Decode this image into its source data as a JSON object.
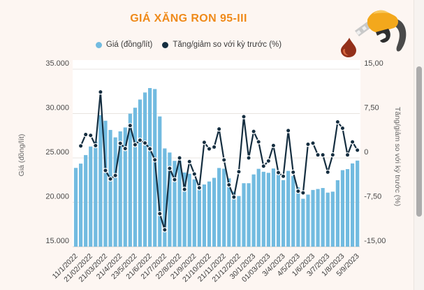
{
  "title": "GIÁ XĂNG RON 95-III",
  "legend": {
    "price_label": "Giá (đồng/lít)",
    "pct_label": "Tăng/giảm so với kỳ trước (%)"
  },
  "colors": {
    "background": "#fdf6f2",
    "plot_background": "#ffffff",
    "bar": "#72bbe0",
    "line": "#152e40",
    "title": "#ef8a1a",
    "grid": "#e8e4e0",
    "tick_text": "#4a4a4a",
    "axis_title_text": "#666666",
    "scroll_thumb": "#acacac"
  },
  "icons": {
    "fuel_pump": "fuel-pump-icon"
  },
  "scrollbar": {
    "present": true
  },
  "chart_data": {
    "type": "bar+line",
    "title": "GIÁ XĂNG RON 95-III",
    "left_axis": {
      "title": "Giá (đồng/lít)",
      "min": 15000,
      "max": 35000,
      "tick_labels": [
        "35.000",
        "30.000",
        "25.000",
        "20.000",
        "15.000"
      ]
    },
    "right_axis": {
      "title": "Tăng/giảm so với kỳ trước (%)",
      "min": -15,
      "max": 15,
      "tick_labels": [
        "15,00",
        "7,50",
        "0",
        "-7,50",
        "-15,00"
      ]
    },
    "x_tick_labels": [
      "11/1/2022",
      "21/02/2022",
      "21/03/2022",
      "21/4/2022",
      "23/5/2022",
      "21/6/2022",
      "21/7/2022",
      "22/8/2022",
      "21/9/2022",
      "21/10/2022",
      "21/11/2022",
      "21/12/2022",
      "30/1/2023",
      "01/03/2023",
      "3/4/2023",
      "4/5/2023",
      "1/6/2023",
      "3/7/2023",
      "1/8/2023",
      "5/9/2023"
    ],
    "label_every_n_bars": 3,
    "bar_count": 58,
    "grid": true,
    "legend_position": "top-center",
    "series": [
      {
        "name": "Giá (đồng/lít)",
        "type": "bar",
        "axis": "left",
        "values": [
          23876,
          24360,
          25322,
          26287,
          26834,
          29824,
          29192,
          28153,
          27317,
          27992,
          28434,
          29988,
          30657,
          31578,
          32375,
          32873,
          32763,
          29675,
          26070,
          25608,
          24669,
          24669,
          23359,
          23215,
          22584,
          21443,
          22007,
          22344,
          22756,
          23867,
          23787,
          22704,
          21200,
          20707,
          22150,
          22150,
          23140,
          23770,
          23440,
          23320,
          23810,
          23220,
          22500,
          23540,
          22970,
          21680,
          20400,
          20870,
          21390,
          21500,
          21610,
          21090,
          21200,
          22490,
          23620,
          23740,
          24380,
          24700
        ]
      },
      {
        "name": "Tăng/giảm so với kỳ trước (%)",
        "type": "line",
        "axis": "right",
        "values": [
          null,
          2.03,
          3.95,
          3.81,
          2.08,
          11.14,
          -2.12,
          -3.56,
          -2.97,
          2.47,
          1.58,
          5.47,
          2.23,
          3.0,
          2.52,
          1.54,
          -0.33,
          -9.42,
          -12.15,
          -1.77,
          -3.67,
          0.0,
          -5.31,
          -0.62,
          -2.72,
          -5.05,
          2.63,
          1.53,
          1.84,
          4.88,
          -0.34,
          -4.55,
          -6.62,
          -2.33,
          6.97,
          0.0,
          4.47,
          2.72,
          -1.39,
          -0.51,
          2.1,
          -2.48,
          -3.1,
          4.62,
          -2.42,
          -5.62,
          -5.9,
          2.3,
          2.49,
          0.51,
          0.51,
          -2.41,
          0.52,
          6.08,
          5.02,
          0.51,
          2.7,
          1.31
        ]
      }
    ]
  }
}
